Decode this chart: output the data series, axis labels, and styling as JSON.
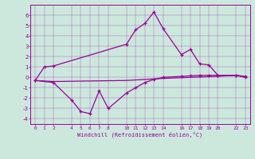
{
  "xlabel": "Windchill (Refroidissement éolien,°C)",
  "background_color": "#cce8dd",
  "line_color": "#990099",
  "xlim": [
    -0.5,
    23.5
  ],
  "ylim": [
    -4.5,
    7.0
  ],
  "yticks": [
    -4,
    -3,
    -2,
    -1,
    0,
    1,
    2,
    3,
    4,
    5,
    6
  ],
  "xticks": [
    0,
    1,
    2,
    4,
    5,
    6,
    7,
    8,
    10,
    11,
    12,
    13,
    14,
    16,
    17,
    18,
    19,
    20,
    22,
    23
  ],
  "curve1_x": [
    0,
    1,
    2,
    10,
    11,
    12,
    13,
    14,
    16,
    17,
    18,
    19,
    20,
    22,
    23
  ],
  "curve1_y": [
    -0.3,
    1.0,
    1.1,
    3.2,
    4.6,
    5.2,
    6.3,
    4.7,
    2.2,
    2.7,
    1.3,
    1.2,
    0.2,
    0.2,
    0.1
  ],
  "curve2_x": [
    0,
    2,
    4,
    5,
    6,
    7,
    8,
    10,
    11,
    12,
    13,
    14,
    16,
    17,
    18,
    19,
    20,
    22,
    23
  ],
  "curve2_y": [
    -0.3,
    -0.5,
    -2.2,
    -3.3,
    -3.5,
    -1.3,
    -3.0,
    -1.5,
    -1.0,
    -0.5,
    -0.2,
    0.0,
    0.1,
    0.15,
    0.2,
    0.2,
    0.2,
    0.2,
    0.0
  ],
  "curve3_x": [
    0,
    2,
    10,
    14,
    20,
    22,
    23
  ],
  "curve3_y": [
    -0.3,
    -0.4,
    -0.3,
    -0.1,
    0.1,
    0.2,
    0.0
  ]
}
